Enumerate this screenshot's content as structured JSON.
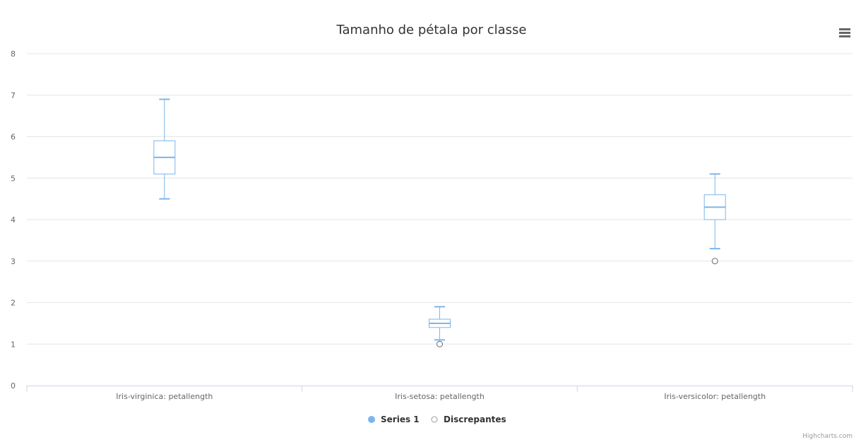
{
  "chart_data": {
    "type": "boxplot",
    "title": "Tamanho de pétala por classe",
    "categories": [
      "Iris-virginica: petallength",
      "Iris-setosa: petallength",
      "Iris-versicolor: petallength"
    ],
    "ylim": [
      0,
      8
    ],
    "yticks": [
      0,
      1,
      2,
      3,
      4,
      5,
      6,
      7,
      8
    ],
    "grid": true,
    "legend_position": "bottom-center",
    "series": [
      {
        "name": "Series 1",
        "color": "#7cb5ec",
        "boxes": [
          {
            "low": 4.5,
            "q1": 5.1,
            "median": 5.5,
            "q3": 5.9,
            "high": 6.9
          },
          {
            "low": 1.1,
            "q1": 1.4,
            "median": 1.5,
            "q3": 1.6,
            "high": 1.9
          },
          {
            "low": 3.3,
            "q1": 4.0,
            "median": 4.3,
            "q3": 4.6,
            "high": 5.1
          }
        ]
      },
      {
        "name": "Discrepantes",
        "color": "#7cb5ec",
        "points": [
          {
            "x": 1,
            "y": 1.0
          },
          {
            "x": 2,
            "y": 3.0
          }
        ]
      }
    ]
  },
  "credits": "Highcharts.com",
  "menu_icon": "hamburger-menu-icon"
}
